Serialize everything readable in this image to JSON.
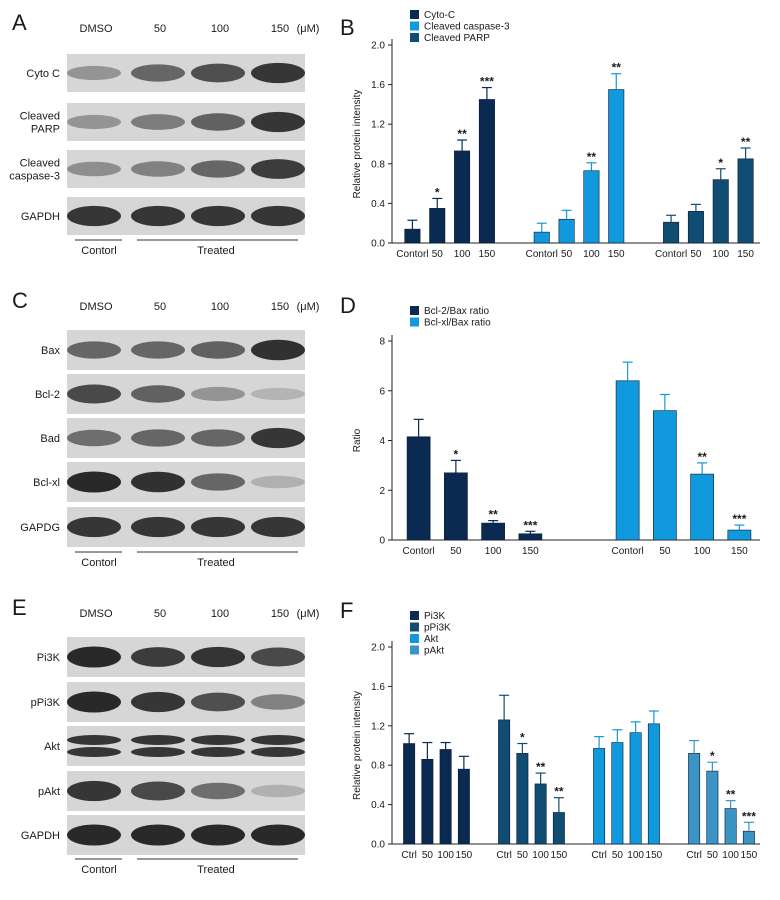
{
  "colors": {
    "navy": "#0b2a52",
    "teal_dark": "#0f4e72",
    "blue": "#1199dd",
    "steel": "#3b94c4",
    "blot_bg": "#d6d6d6",
    "band": "#1a1a1a"
  },
  "blots": [
    {
      "letter": "A",
      "header": [
        "DMSO",
        "50",
        "100",
        "150",
        "(μM)"
      ],
      "rows": [
        {
          "label": [
            "Cyto C"
          ],
          "intensity": [
            0.35,
            0.6,
            0.72,
            0.85
          ]
        },
        {
          "label": [
            "Cleaved",
            "PARP"
          ],
          "intensity": [
            0.35,
            0.48,
            0.62,
            0.85
          ]
        },
        {
          "label": [
            "Cleaved",
            "caspase-3"
          ],
          "intensity": [
            0.38,
            0.45,
            0.6,
            0.82
          ]
        },
        {
          "label": [
            "GAPDH"
          ],
          "intensity": [
            0.85,
            0.85,
            0.85,
            0.85
          ]
        }
      ],
      "groups": [
        "Contorl",
        "Treated"
      ]
    },
    {
      "letter": "C",
      "header": [
        "DMSO",
        "50",
        "100",
        "150",
        "(μM)"
      ],
      "rows": [
        {
          "label": [
            "Bax"
          ],
          "intensity": [
            0.6,
            0.6,
            0.62,
            0.88
          ]
        },
        {
          "label": [
            "Bcl-2"
          ],
          "intensity": [
            0.75,
            0.62,
            0.35,
            0.18
          ]
        },
        {
          "label": [
            "Bad"
          ],
          "intensity": [
            0.55,
            0.6,
            0.6,
            0.85
          ]
        },
        {
          "label": [
            "Bcl-xl"
          ],
          "intensity": [
            0.92,
            0.88,
            0.6,
            0.2
          ]
        },
        {
          "label": [
            "GAPDG"
          ],
          "intensity": [
            0.85,
            0.85,
            0.85,
            0.85
          ]
        }
      ],
      "groups": [
        "Contorl",
        "Treated"
      ]
    },
    {
      "letter": "E",
      "header": [
        "DMSO",
        "50",
        "100",
        "150",
        "(μM)"
      ],
      "rows": [
        {
          "label": [
            "Pi3K"
          ],
          "intensity": [
            0.92,
            0.82,
            0.86,
            0.75
          ]
        },
        {
          "label": [
            "pPi3K"
          ],
          "intensity": [
            0.92,
            0.85,
            0.72,
            0.45
          ]
        },
        {
          "label": [
            "Akt"
          ],
          "intensity": [
            0.85,
            0.85,
            0.85,
            0.85
          ],
          "double": true
        },
        {
          "label": [
            "pAkt"
          ],
          "intensity": [
            0.85,
            0.75,
            0.55,
            0.2
          ]
        },
        {
          "label": [
            "GAPDH"
          ],
          "intensity": [
            0.92,
            0.92,
            0.92,
            0.92
          ]
        }
      ],
      "groups": [
        "Contorl",
        "Treated"
      ]
    }
  ],
  "chart_data": [
    {
      "letter": "B",
      "type": "bar",
      "ylabel": "Relative protein intensity",
      "ylim": [
        0,
        2.0
      ],
      "yticks": [
        "0.0",
        "0.4",
        "0.8",
        "1.2",
        "1.6",
        "2.0"
      ],
      "legend_position": "top-left",
      "series": [
        {
          "name": "Cyto-C",
          "color": "#0b2a52",
          "categories": [
            "Contorl",
            "50",
            "100",
            "150"
          ],
          "values": [
            0.14,
            0.35,
            0.93,
            1.45
          ],
          "errors": [
            0.09,
            0.1,
            0.11,
            0.12
          ],
          "stars": [
            "",
            "*",
            "**",
            "***"
          ]
        },
        {
          "name": "Cleaved caspase-3",
          "color": "#1199dd",
          "categories": [
            "Contorl",
            "50",
            "100",
            "150"
          ],
          "values": [
            0.11,
            0.24,
            0.73,
            1.55
          ],
          "errors": [
            0.09,
            0.09,
            0.08,
            0.16
          ],
          "stars": [
            "",
            "",
            "**",
            "**"
          ]
        },
        {
          "name": "Cleaved PARP",
          "color": "#0f4e72",
          "categories": [
            "Contorl",
            "50",
            "100",
            "150"
          ],
          "values": [
            0.21,
            0.32,
            0.64,
            0.85
          ],
          "errors": [
            0.07,
            0.07,
            0.11,
            0.11
          ],
          "stars": [
            "",
            "",
            "*",
            "**"
          ]
        }
      ]
    },
    {
      "letter": "D",
      "type": "bar",
      "ylabel": "Ratio",
      "ylim": [
        0,
        8
      ],
      "yticks": [
        "0",
        "2",
        "4",
        "6",
        "8"
      ],
      "legend_position": "top-left",
      "series": [
        {
          "name": "Bcl-2/Bax ratio",
          "color": "#0b2a52",
          "categories": [
            "Contorl",
            "50",
            "100",
            "150"
          ],
          "values": [
            4.15,
            2.7,
            0.68,
            0.25
          ],
          "errors": [
            0.7,
            0.5,
            0.1,
            0.1
          ],
          "stars": [
            "",
            "*",
            "**",
            "***"
          ]
        },
        {
          "name": "Bcl-xl/Bax ratio",
          "color": "#1199dd",
          "categories": [
            "Contorl",
            "50",
            "100",
            "150"
          ],
          "values": [
            6.4,
            5.2,
            2.65,
            0.4
          ],
          "errors": [
            0.75,
            0.65,
            0.45,
            0.2
          ],
          "stars": [
            "",
            "",
            "**",
            "***"
          ]
        }
      ]
    },
    {
      "letter": "F",
      "type": "bar",
      "ylabel": "Relative protein intensity",
      "ylim": [
        0,
        2.0
      ],
      "yticks": [
        "0.0",
        "0.4",
        "0.8",
        "1.2",
        "1.6",
        "2.0"
      ],
      "legend_position": "top-left",
      "series": [
        {
          "name": "Pi3K",
          "color": "#0b2a52",
          "categories": [
            "Ctrl",
            "50",
            "100",
            "150"
          ],
          "values": [
            1.02,
            0.86,
            0.96,
            0.76
          ],
          "errors": [
            0.1,
            0.17,
            0.07,
            0.13
          ],
          "stars": [
            "",
            "",
            "",
            ""
          ]
        },
        {
          "name": "pPi3K",
          "color": "#0f4e72",
          "categories": [
            "Ctrl",
            "50",
            "100",
            "150"
          ],
          "values": [
            1.26,
            0.92,
            0.61,
            0.32
          ],
          "errors": [
            0.25,
            0.1,
            0.11,
            0.15
          ],
          "stars": [
            "",
            "*",
            "**",
            "**"
          ]
        },
        {
          "name": "Akt",
          "color": "#1199dd",
          "categories": [
            "Ctrl",
            "50",
            "100",
            "150"
          ],
          "values": [
            0.97,
            1.03,
            1.13,
            1.22
          ],
          "errors": [
            0.12,
            0.13,
            0.11,
            0.13
          ],
          "stars": [
            "",
            "",
            "",
            ""
          ]
        },
        {
          "name": "pAkt",
          "color": "#3b94c4",
          "categories": [
            "Ctrl",
            "50",
            "100",
            "150"
          ],
          "values": [
            0.92,
            0.74,
            0.36,
            0.13
          ],
          "errors": [
            0.13,
            0.09,
            0.08,
            0.09
          ],
          "stars": [
            "",
            "*",
            "**",
            "***"
          ]
        }
      ]
    }
  ]
}
